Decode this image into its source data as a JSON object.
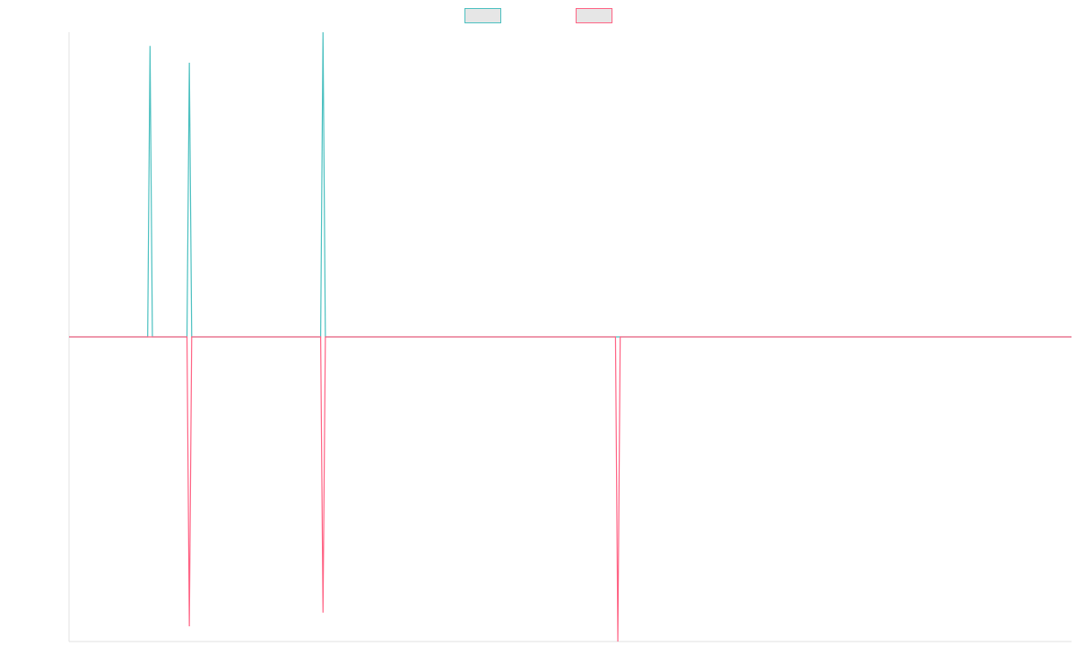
{
  "chart_data": {
    "type": "line",
    "title": "",
    "xlabel": "",
    "ylabel": "",
    "ylim": [
      -100,
      100
    ],
    "xlim": [
      0,
      255
    ],
    "grid": false,
    "legend": "top-center",
    "series": [
      {
        "color": "#4bc0c0",
        "points": [
          {
            "x": 20,
            "y": 0
          },
          {
            "x": 20.6,
            "y": 95.5
          },
          {
            "x": 21.2,
            "y": 0
          },
          {
            "x": 30,
            "y": 0
          },
          {
            "x": 30.6,
            "y": 90
          },
          {
            "x": 31.2,
            "y": 0
          },
          {
            "x": 64,
            "y": 0
          },
          {
            "x": 64.6,
            "y": 100
          },
          {
            "x": 65.2,
            "y": 0
          }
        ]
      },
      {
        "color": "#ff6384",
        "points": [
          {
            "x": 30,
            "y": 0
          },
          {
            "x": 30.6,
            "y": -95
          },
          {
            "x": 31.2,
            "y": 0
          },
          {
            "x": 64,
            "y": 0
          },
          {
            "x": 64.6,
            "y": -90.5
          },
          {
            "x": 65.2,
            "y": 0
          },
          {
            "x": 139,
            "y": 0
          },
          {
            "x": 139.6,
            "y": -100
          },
          {
            "x": 140.2,
            "y": 0
          }
        ]
      }
    ]
  }
}
